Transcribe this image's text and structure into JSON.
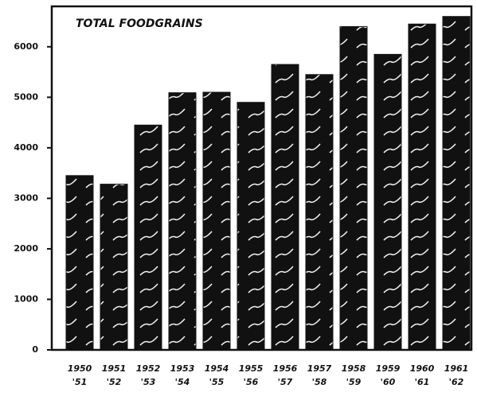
{
  "chart_data": {
    "type": "bar",
    "title": "TOTAL FOODGRAINS",
    "categories": [
      [
        "1950",
        "'51"
      ],
      [
        "1951",
        "'52"
      ],
      [
        "1952",
        "'53"
      ],
      [
        "1953",
        "'54"
      ],
      [
        "1954",
        "'55"
      ],
      [
        "1955",
        "'56"
      ],
      [
        "1956",
        "'57"
      ],
      [
        "1957",
        "'58"
      ],
      [
        "1958",
        "'59"
      ],
      [
        "1959",
        "'60"
      ],
      [
        "1960",
        "'61"
      ],
      [
        "1961",
        "'62"
      ]
    ],
    "values": [
      3450,
      3280,
      4450,
      5090,
      5100,
      4900,
      5650,
      5450,
      6400,
      5850,
      6450,
      6600
    ],
    "color": "#111111",
    "ylim": [
      0,
      6800
    ],
    "yticks": [
      0,
      1000,
      2000,
      3000,
      4000,
      5000,
      6000
    ],
    "grid": false
  }
}
